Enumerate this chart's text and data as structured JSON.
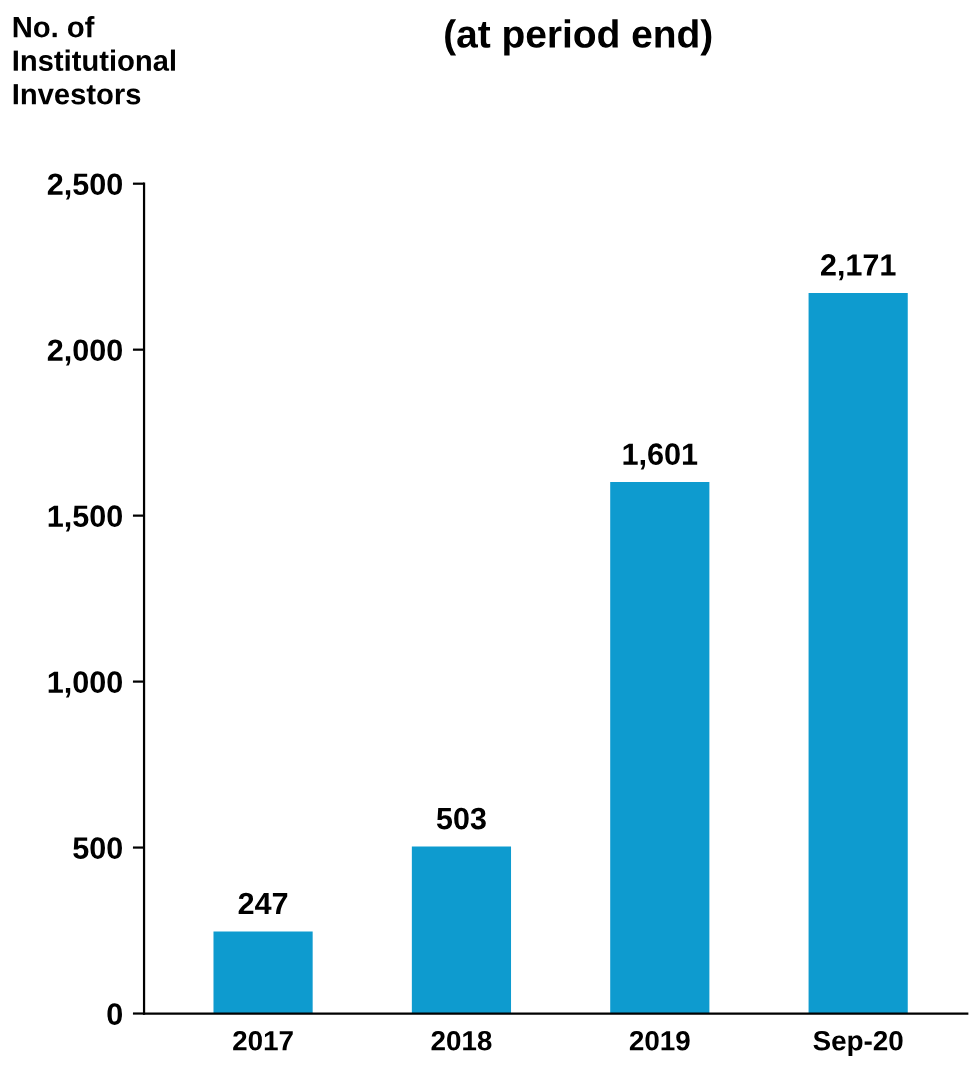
{
  "chart_data": {
    "type": "bar",
    "title": "(at period end)",
    "ylabel": "No. of\nInstitutional\nInvestors",
    "categories": [
      "2017",
      "2018",
      "2019",
      "Sep-20"
    ],
    "values": [
      247,
      503,
      1601,
      2171
    ],
    "value_labels": [
      "247",
      "503",
      "1,601",
      "2,171"
    ],
    "color": "#0e9bcf",
    "ylim": [
      0,
      2500
    ],
    "yticks": [
      {
        "value": 0,
        "label": "0"
      },
      {
        "value": 500,
        "label": "500"
      },
      {
        "value": 1000,
        "label": "1,000"
      },
      {
        "value": 1500,
        "label": "1,500"
      },
      {
        "value": 2000,
        "label": "2,000"
      },
      {
        "value": 2500,
        "label": "2,500"
      }
    ],
    "grid": false,
    "legend": false
  }
}
